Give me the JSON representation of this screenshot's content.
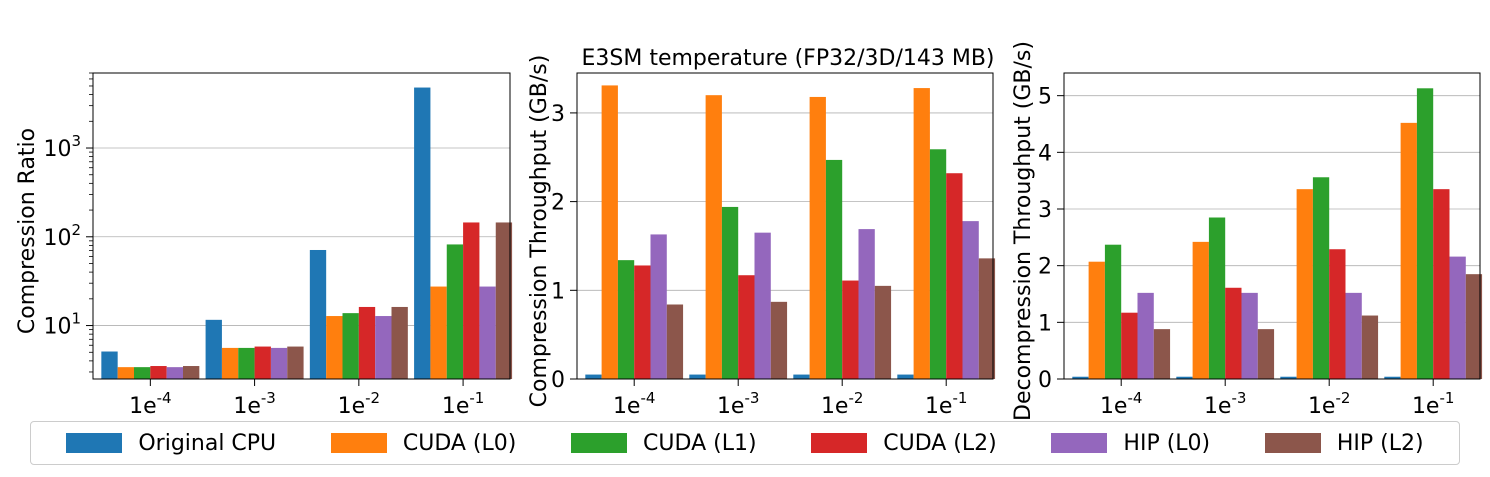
{
  "colors": [
    "#1f77b4",
    "#ff7f0e",
    "#2ca02c",
    "#d62728",
    "#9467bd",
    "#8c564b"
  ],
  "legend": [
    "Original CPU",
    "CUDA (L0)",
    "CUDA (L1)",
    "CUDA (L2)",
    "HIP (L0)",
    "HIP (L2)"
  ],
  "chart_data": [
    {
      "type": "bar",
      "title": "",
      "ylabel": "Compression Ratio",
      "yscale": "log",
      "ylim": [
        2.5,
        7000
      ],
      "ytick_values": [
        10,
        100,
        1000
      ],
      "ytick_labels": [
        [
          "10",
          "1"
        ],
        [
          "10",
          "2"
        ],
        [
          "10",
          "3"
        ]
      ],
      "categories": [
        [
          "1e",
          "-4"
        ],
        [
          "1e",
          "-3"
        ],
        [
          "1e",
          "-2"
        ],
        [
          "1e",
          "-1"
        ]
      ],
      "grid": "y",
      "series": [
        {
          "name": "Original CPU",
          "values": [
            5.1,
            11.6,
            71,
            4800
          ]
        },
        {
          "name": "CUDA (L0)",
          "values": [
            3.4,
            5.6,
            12.8,
            27.5
          ]
        },
        {
          "name": "CUDA (L1)",
          "values": [
            3.4,
            5.6,
            13.8,
            82
          ]
        },
        {
          "name": "CUDA (L2)",
          "values": [
            3.5,
            5.8,
            16.2,
            145
          ]
        },
        {
          "name": "HIP (L0)",
          "values": [
            3.4,
            5.6,
            12.8,
            27.5
          ]
        },
        {
          "name": "HIP (L2)",
          "values": [
            3.5,
            5.8,
            16.2,
            145
          ]
        }
      ]
    },
    {
      "type": "bar",
      "title": "E3SM temperature (FP32/3D/143 MB)",
      "ylabel": "Compression Throughput (GB/s)",
      "yscale": "linear",
      "ylim": [
        0,
        3.45
      ],
      "ytick_values": [
        0,
        1,
        2,
        3
      ],
      "ytick_labels": [
        "0",
        "1",
        "2",
        "3"
      ],
      "categories": [
        [
          "1e",
          "-4"
        ],
        [
          "1e",
          "-3"
        ],
        [
          "1e",
          "-2"
        ],
        [
          "1e",
          "-1"
        ]
      ],
      "grid": "y",
      "series": [
        {
          "name": "Original CPU",
          "values": [
            0.05,
            0.05,
            0.05,
            0.05
          ]
        },
        {
          "name": "CUDA (L0)",
          "values": [
            3.31,
            3.2,
            3.18,
            3.28
          ]
        },
        {
          "name": "CUDA (L1)",
          "values": [
            1.34,
            1.94,
            2.47,
            2.59
          ]
        },
        {
          "name": "CUDA (L2)",
          "values": [
            1.28,
            1.17,
            1.11,
            2.32
          ]
        },
        {
          "name": "HIP (L0)",
          "values": [
            1.63,
            1.65,
            1.69,
            1.78
          ]
        },
        {
          "name": "HIP (L2)",
          "values": [
            0.84,
            0.87,
            1.05,
            1.36
          ]
        }
      ]
    },
    {
      "type": "bar",
      "title": "",
      "ylabel": "Decompression Throughput (GB/s)",
      "yscale": "linear",
      "ylim": [
        0,
        5.4
      ],
      "ytick_values": [
        0,
        1,
        2,
        3,
        4,
        5
      ],
      "ytick_labels": [
        "0",
        "1",
        "2",
        "3",
        "4",
        "5"
      ],
      "categories": [
        [
          "1e",
          "-4"
        ],
        [
          "1e",
          "-3"
        ],
        [
          "1e",
          "-2"
        ],
        [
          "1e",
          "-1"
        ]
      ],
      "grid": "y",
      "series": [
        {
          "name": "Original CPU",
          "values": [
            0.04,
            0.04,
            0.04,
            0.04
          ]
        },
        {
          "name": "CUDA (L0)",
          "values": [
            2.07,
            2.42,
            3.35,
            4.52
          ]
        },
        {
          "name": "CUDA (L1)",
          "values": [
            2.37,
            2.85,
            3.56,
            5.13
          ]
        },
        {
          "name": "CUDA (L2)",
          "values": [
            1.17,
            1.61,
            2.29,
            3.35
          ]
        },
        {
          "name": "HIP (L0)",
          "values": [
            1.52,
            1.52,
            1.52,
            2.16
          ]
        },
        {
          "name": "HIP (L2)",
          "values": [
            0.88,
            0.88,
            1.12,
            1.85
          ]
        }
      ]
    }
  ]
}
